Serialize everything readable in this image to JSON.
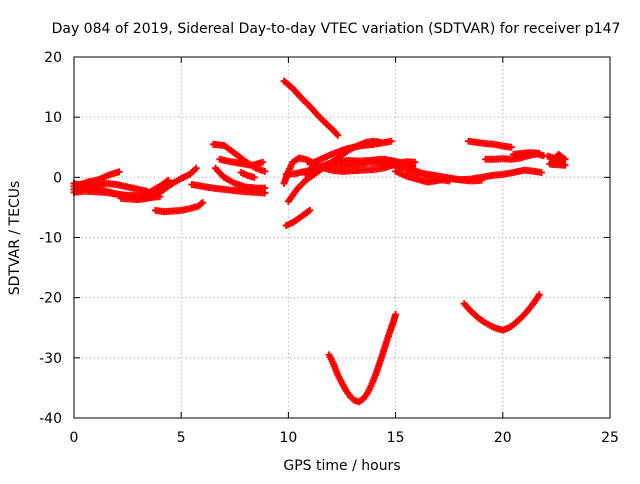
{
  "chart_data": {
    "type": "scatter",
    "title": "Day 084 of 2019, Sidereal Day-to-day VTEC variation (SDTVAR) for receiver p147",
    "xlabel": "GPS time / hours",
    "ylabel": "SDTVAR / TECUs",
    "xlim": [
      0,
      25
    ],
    "ylim": [
      -40,
      20
    ],
    "xticks": [
      0,
      5,
      10,
      15,
      20,
      25
    ],
    "yticks": [
      -40,
      -30,
      -20,
      -10,
      0,
      10,
      20
    ],
    "grid": true,
    "marker": "plus",
    "color": "#ff0000",
    "series": [
      {
        "points": [
          [
            0.0,
            -1.5
          ],
          [
            0.3,
            -1.2
          ],
          [
            0.6,
            -0.8
          ],
          [
            0.9,
            -0.6
          ],
          [
            1.2,
            -0.3
          ],
          [
            1.5,
            0.2
          ],
          [
            1.8,
            0.6
          ],
          [
            2.1,
            0.9
          ]
        ]
      },
      {
        "points": [
          [
            0.0,
            -2.0
          ],
          [
            0.5,
            -1.8
          ],
          [
            1.0,
            -1.3
          ],
          [
            1.5,
            -1.0
          ],
          [
            2.0,
            -1.2
          ],
          [
            2.5,
            -1.6
          ],
          [
            3.0,
            -2.0
          ],
          [
            3.4,
            -2.3
          ]
        ]
      },
      {
        "points": [
          [
            0.0,
            -2.5
          ],
          [
            0.5,
            -2.3
          ],
          [
            1.0,
            -2.4
          ],
          [
            1.5,
            -2.5
          ],
          [
            2.0,
            -2.8
          ],
          [
            2.5,
            -3.0
          ],
          [
            3.0,
            -3.0
          ],
          [
            3.5,
            -2.9
          ],
          [
            3.8,
            -2.6
          ]
        ]
      },
      {
        "points": [
          [
            0.0,
            -1.0
          ],
          [
            0.5,
            -1.5
          ],
          [
            1.0,
            -2.0
          ],
          [
            1.5,
            -2.3
          ],
          [
            2.0,
            -2.8
          ],
          [
            2.5,
            -3.2
          ],
          [
            3.0,
            -3.4
          ],
          [
            3.5,
            -3.4
          ],
          [
            4.0,
            -3.2
          ]
        ]
      },
      {
        "points": [
          [
            2.2,
            -3.5
          ],
          [
            2.6,
            -3.6
          ],
          [
            3.0,
            -3.7
          ],
          [
            3.4,
            -3.5
          ],
          [
            3.8,
            -3.0
          ],
          [
            4.2,
            -2.0
          ],
          [
            4.6,
            -1.0
          ],
          [
            5.0,
            -0.2
          ],
          [
            5.4,
            0.5
          ],
          [
            5.7,
            1.5
          ]
        ]
      },
      {
        "points": [
          [
            3.0,
            -3.2
          ],
          [
            3.5,
            -2.5
          ],
          [
            4.0,
            -1.5
          ],
          [
            4.4,
            -0.5
          ]
        ]
      },
      {
        "points": [
          [
            3.8,
            -5.5
          ],
          [
            4.2,
            -5.7
          ],
          [
            4.6,
            -5.6
          ],
          [
            5.0,
            -5.5
          ],
          [
            5.4,
            -5.2
          ],
          [
            5.8,
            -4.8
          ],
          [
            6.0,
            -4.2
          ]
        ]
      },
      {
        "points": [
          [
            5.5,
            -1.2
          ],
          [
            6.0,
            -1.5
          ],
          [
            6.5,
            -1.8
          ],
          [
            7.0,
            -2.0
          ],
          [
            7.5,
            -2.2
          ],
          [
            8.0,
            -2.4
          ],
          [
            8.5,
            -2.5
          ],
          [
            8.9,
            -2.6
          ]
        ]
      },
      {
        "points": [
          [
            6.6,
            1.5
          ],
          [
            7.0,
            0.0
          ],
          [
            7.5,
            -1.0
          ],
          [
            8.0,
            -1.6
          ],
          [
            8.5,
            -1.8
          ],
          [
            8.9,
            -1.8
          ]
        ]
      },
      {
        "points": [
          [
            6.5,
            5.5
          ],
          [
            7.0,
            5.3
          ],
          [
            7.5,
            4.0
          ],
          [
            8.0,
            2.6
          ],
          [
            8.5,
            1.5
          ],
          [
            8.9,
            1.0
          ]
        ]
      },
      {
        "points": [
          [
            6.8,
            3.0
          ],
          [
            7.3,
            2.6
          ],
          [
            7.8,
            2.3
          ],
          [
            8.3,
            2.0
          ],
          [
            8.8,
            2.5
          ]
        ]
      },
      {
        "points": [
          [
            7.8,
            0.8
          ],
          [
            8.1,
            0.3
          ],
          [
            8.4,
            0.0
          ]
        ]
      },
      {
        "points": [
          [
            9.8,
            16.0
          ],
          [
            10.2,
            14.8
          ],
          [
            10.6,
            13.2
          ],
          [
            11.0,
            11.8
          ],
          [
            11.4,
            10.2
          ],
          [
            11.8,
            8.8
          ],
          [
            12.1,
            7.8
          ],
          [
            12.3,
            7.0
          ]
        ]
      },
      {
        "points": [
          [
            9.9,
            -8.0
          ],
          [
            10.2,
            -7.5
          ],
          [
            10.5,
            -6.8
          ],
          [
            10.8,
            -6.0
          ],
          [
            11.0,
            -5.5
          ]
        ]
      },
      {
        "points": [
          [
            9.8,
            -1.0
          ],
          [
            10.0,
            1.0
          ],
          [
            10.2,
            2.5
          ],
          [
            10.5,
            3.2
          ],
          [
            10.8,
            3.0
          ],
          [
            11.0,
            2.7
          ],
          [
            11.3,
            2.0
          ],
          [
            11.6,
            1.6
          ],
          [
            12.0,
            1.2
          ],
          [
            12.5,
            1.0
          ],
          [
            13.0,
            1.1
          ],
          [
            13.5,
            1.2
          ],
          [
            14.0,
            1.3
          ],
          [
            14.5,
            1.6
          ],
          [
            15.0,
            2.2
          ],
          [
            15.5,
            2.6
          ],
          [
            15.9,
            2.5
          ]
        ]
      },
      {
        "points": [
          [
            10.0,
            -4.0
          ],
          [
            10.4,
            -2.0
          ],
          [
            10.8,
            -0.5
          ],
          [
            11.2,
            0.5
          ],
          [
            11.6,
            1.5
          ],
          [
            12.0,
            2.5
          ],
          [
            12.4,
            3.5
          ],
          [
            12.8,
            4.5
          ],
          [
            13.2,
            5.2
          ],
          [
            13.6,
            5.8
          ],
          [
            14.0,
            6.0
          ],
          [
            14.3,
            5.8
          ]
        ]
      },
      {
        "points": [
          [
            10.8,
            0.5
          ],
          [
            11.3,
            1.5
          ],
          [
            11.8,
            2.2
          ],
          [
            12.3,
            2.6
          ],
          [
            12.8,
            2.8
          ],
          [
            13.3,
            2.7
          ],
          [
            13.8,
            2.8
          ],
          [
            14.3,
            3.0
          ],
          [
            14.8,
            2.8
          ],
          [
            15.3,
            2.4
          ],
          [
            15.8,
            1.8
          ]
        ]
      },
      {
        "points": [
          [
            9.9,
            0.5
          ],
          [
            10.3,
            0.6
          ],
          [
            10.8,
            1.0
          ],
          [
            11.3,
            1.5
          ],
          [
            11.8,
            1.8
          ],
          [
            12.3,
            1.9
          ],
          [
            12.8,
            2.0
          ],
          [
            13.3,
            2.2
          ],
          [
            13.8,
            2.5
          ],
          [
            14.3,
            2.4
          ],
          [
            14.8,
            2.1
          ],
          [
            15.3,
            1.6
          ]
        ]
      },
      {
        "points": [
          [
            11.0,
            2.2
          ],
          [
            11.5,
            3.0
          ],
          [
            12.0,
            3.8
          ],
          [
            12.5,
            4.5
          ],
          [
            13.0,
            5.0
          ],
          [
            13.5,
            5.3
          ],
          [
            14.0,
            5.5
          ],
          [
            14.5,
            5.8
          ],
          [
            14.8,
            6.0
          ]
        ]
      },
      {
        "points": [
          [
            15.0,
            1.0
          ],
          [
            15.5,
            0.2
          ],
          [
            16.0,
            -0.3
          ],
          [
            16.5,
            -0.8
          ],
          [
            17.0,
            -0.5
          ],
          [
            17.5,
            -0.2
          ],
          [
            18.0,
            -0.4
          ],
          [
            18.5,
            -0.3
          ],
          [
            19.0,
            0.0
          ],
          [
            19.5,
            0.3
          ],
          [
            20.0,
            0.5
          ],
          [
            20.5,
            0.8
          ],
          [
            21.0,
            1.2
          ],
          [
            21.5,
            1.0
          ],
          [
            21.8,
            0.8
          ]
        ]
      },
      {
        "points": [
          [
            15.5,
            1.2
          ],
          [
            16.0,
            0.8
          ],
          [
            16.5,
            0.5
          ],
          [
            17.0,
            0.2
          ],
          [
            17.5,
            -0.1
          ],
          [
            18.0,
            -0.4
          ],
          [
            18.5,
            -0.6
          ],
          [
            19.0,
            -0.5
          ]
        ]
      },
      {
        "points": [
          [
            14.5,
            3.0
          ],
          [
            15.0,
            2.5
          ],
          [
            15.5,
            1.8
          ],
          [
            16.0,
            1.0
          ],
          [
            16.5,
            0.3
          ],
          [
            17.0,
            -0.3
          ],
          [
            17.5,
            -0.6
          ]
        ]
      },
      {
        "points": [
          [
            18.4,
            6.0
          ],
          [
            18.8,
            5.8
          ],
          [
            19.2,
            5.6
          ],
          [
            19.6,
            5.5
          ],
          [
            20.0,
            5.2
          ],
          [
            20.4,
            5.0
          ]
        ]
      },
      {
        "points": [
          [
            19.2,
            3.0
          ],
          [
            19.6,
            3.0
          ],
          [
            20.0,
            3.1
          ],
          [
            20.4,
            3.0
          ],
          [
            20.8,
            3.2
          ],
          [
            21.2,
            3.6
          ],
          [
            21.6,
            3.9
          ],
          [
            21.9,
            3.6
          ]
        ]
      },
      {
        "points": [
          [
            20.5,
            3.8
          ],
          [
            20.9,
            4.0
          ],
          [
            21.3,
            4.1
          ],
          [
            21.7,
            4.0
          ]
        ]
      },
      {
        "points": [
          [
            22.1,
            3.5
          ],
          [
            22.4,
            3.2
          ],
          [
            22.7,
            2.5
          ],
          [
            22.9,
            2.0
          ],
          [
            22.2,
            2.2
          ],
          [
            22.6,
            3.8
          ],
          [
            22.9,
            3.0
          ]
        ]
      },
      {
        "points": [
          [
            11.9,
            -29.5
          ],
          [
            12.1,
            -31.0
          ],
          [
            12.3,
            -32.8
          ],
          [
            12.5,
            -34.2
          ],
          [
            12.7,
            -35.5
          ],
          [
            12.9,
            -36.5
          ],
          [
            13.1,
            -37.1
          ],
          [
            13.3,
            -37.3
          ],
          [
            13.5,
            -36.8
          ],
          [
            13.7,
            -35.8
          ],
          [
            13.9,
            -34.3
          ],
          [
            14.1,
            -32.5
          ],
          [
            14.3,
            -30.4
          ],
          [
            14.5,
            -28.2
          ],
          [
            14.7,
            -26.0
          ],
          [
            14.9,
            -24.0
          ],
          [
            15.0,
            -22.8
          ]
        ]
      },
      {
        "points": [
          [
            18.2,
            -21.0
          ],
          [
            18.5,
            -22.2
          ],
          [
            18.8,
            -23.2
          ],
          [
            19.1,
            -24.0
          ],
          [
            19.4,
            -24.6
          ],
          [
            19.7,
            -25.1
          ],
          [
            20.0,
            -25.4
          ],
          [
            20.3,
            -25.0
          ],
          [
            20.6,
            -24.2
          ],
          [
            20.9,
            -23.2
          ],
          [
            21.2,
            -22.0
          ],
          [
            21.5,
            -20.6
          ],
          [
            21.7,
            -19.5
          ]
        ]
      }
    ]
  }
}
